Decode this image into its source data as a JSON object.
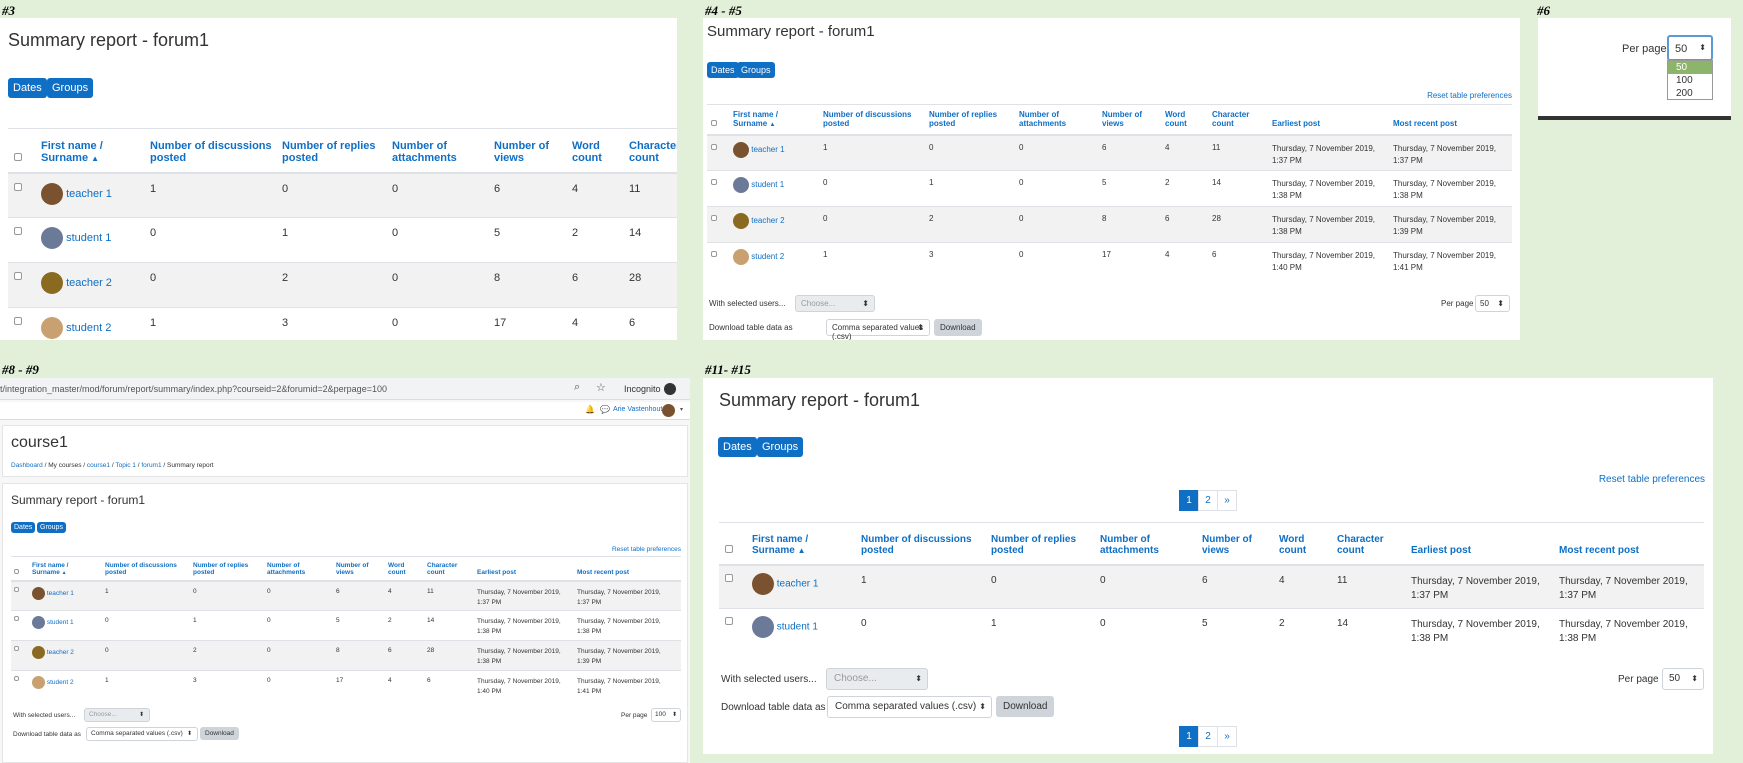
{
  "labels": {
    "p1": "#3",
    "p2": "#4 - #5",
    "p3": "#6",
    "p4": "#8 - #9",
    "p5": "#11- #15"
  },
  "report_title": "Summary report - forum1",
  "buttons": {
    "dates": "Dates",
    "groups": "Groups",
    "download": "Download"
  },
  "reset_prefs": "Reset table preferences",
  "headers": {
    "name_a": "First name",
    "name_b": "Surname",
    "discussions_a": "Number of discussions",
    "discussions_b": "posted",
    "replies_a": "Number of replies",
    "replies_b": "posted",
    "attachments_a": "Number of",
    "attachments_b": "attachments",
    "views_a": "Number of",
    "views_b": "views",
    "word_a": "Word",
    "word_b": "count",
    "char_a": "Character",
    "char_b": "count",
    "earliest": "Earliest post",
    "recent": "Most recent post"
  },
  "rows": [
    {
      "name": "teacher 1",
      "disc": "1",
      "rep": "0",
      "att": "0",
      "views": "6",
      "words": "4",
      "chars": "11",
      "earliest_a": "Thursday, 7 November 2019,",
      "earliest_b": "1:37 PM",
      "recent_a": "Thursday, 7 November 2019,",
      "recent_b": "1:37 PM",
      "avatar": "#7a5230"
    },
    {
      "name": "student 1",
      "disc": "0",
      "rep": "1",
      "att": "0",
      "views": "5",
      "words": "2",
      "chars": "14",
      "earliest_a": "Thursday, 7 November 2019,",
      "earliest_b": "1:38 PM",
      "recent_a": "Thursday, 7 November 2019,",
      "recent_b": "1:38 PM",
      "avatar": "#6b7a99"
    },
    {
      "name": "teacher 2",
      "disc": "0",
      "rep": "2",
      "att": "0",
      "views": "8",
      "words": "6",
      "chars": "28",
      "earliest_a": "Thursday, 7 November 2019,",
      "earliest_b": "1:38 PM",
      "recent_a": "Thursday, 7 November 2019,",
      "recent_b": "1:39 PM",
      "avatar": "#8a6a20"
    },
    {
      "name": "student 2",
      "disc": "1",
      "rep": "3",
      "att": "0",
      "views": "17",
      "words": "4",
      "chars": "6",
      "earliest_a": "Thursday, 7 November 2019,",
      "earliest_b": "1:40 PM",
      "recent_a": "Thursday, 7 November 2019,",
      "recent_b": "1:41 PM",
      "avatar": "#c9a070"
    }
  ],
  "with_selected": "With selected users...",
  "choose": "Choose...",
  "download_label": "Download table data as",
  "download_format": "Comma separated values (.csv)",
  "per_page_label": "Per page",
  "per_page_value": "50",
  "per_page_value_p4": "100",
  "per_page_options": [
    "50",
    "100",
    "200"
  ],
  "browser": {
    "url": "t/integration_master/mod/forum/report/summary/index.php?courseid=2&forumid=2&perpage=100",
    "incognito": "Incognito",
    "user": "Arie Vastenhout"
  },
  "course": {
    "title": "course1",
    "crumbs": [
      "Dashboard",
      "My courses",
      "course1",
      "Topic 1",
      "forum1",
      "Summary report"
    ]
  },
  "pagination": [
    "1",
    "2",
    "»"
  ],
  "colors": {
    "accent": "#0f6fc5",
    "bg": "#e2efd9",
    "stripe": "#f2f2f2"
  }
}
